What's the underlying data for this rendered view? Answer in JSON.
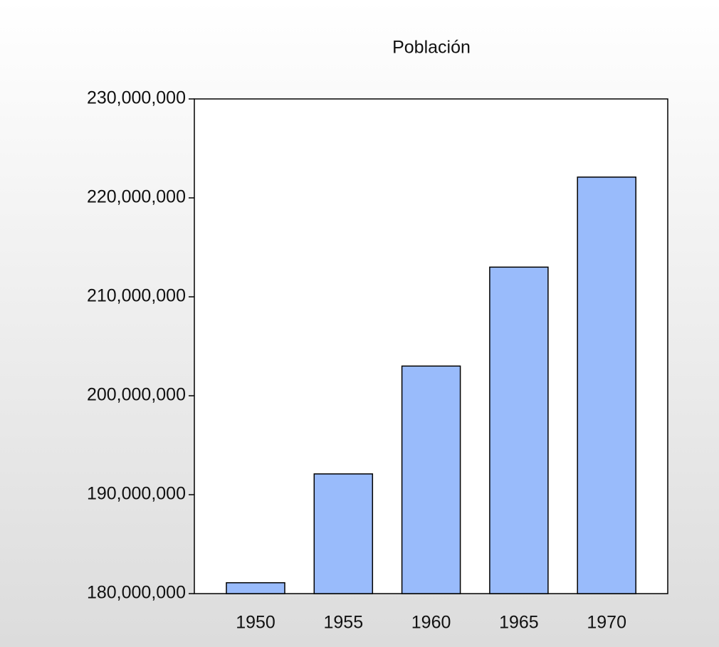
{
  "chart_data": {
    "type": "bar",
    "title": "Población",
    "categories": [
      "1950",
      "1955",
      "1960",
      "1965",
      "1970"
    ],
    "values": [
      181100000,
      192100000,
      203000000,
      213000000,
      222100000
    ],
    "color": "#99bbfb",
    "ylim": [
      180000000,
      230000000
    ],
    "yticks": [
      {
        "value": 180000000,
        "label": "180,000,000"
      },
      {
        "value": 190000000,
        "label": "190,000,000"
      },
      {
        "value": 200000000,
        "label": "200,000,000"
      },
      {
        "value": 210000000,
        "label": "210,000,000"
      },
      {
        "value": 220000000,
        "label": "220,000,000"
      },
      {
        "value": 230000000,
        "label": "230,000,000"
      }
    ],
    "grid": false
  }
}
